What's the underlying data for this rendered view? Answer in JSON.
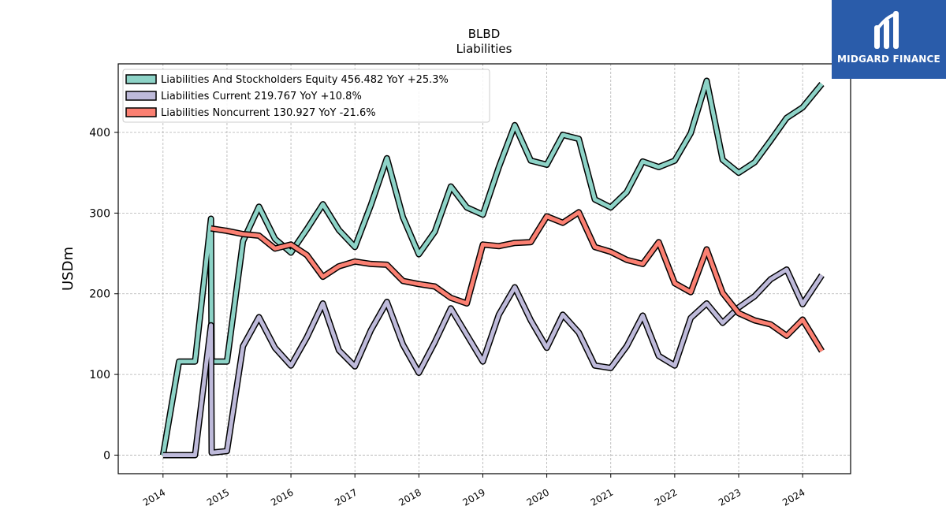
{
  "brand": {
    "name": "MIDGARD FINANCE",
    "background": "#2a5caa"
  },
  "chart_data": {
    "type": "line",
    "title": "BLBD",
    "subtitle": "Liabilities",
    "ylabel": "USDm",
    "xlabel": "",
    "ylim": [
      -23,
      485
    ],
    "xlim": [
      2013.3,
      2024.75
    ],
    "yticks": [
      0,
      100,
      200,
      300,
      400
    ],
    "xticks": [
      "2014",
      "2015",
      "2016",
      "2017",
      "2018",
      "2019",
      "2020",
      "2021",
      "2022",
      "2023",
      "2024"
    ],
    "grid": true,
    "legend_position": "top-left",
    "series": [
      {
        "name": "Liabilities And Stockholders Equity",
        "legend": "Liabilities And Stockholders Equity  456.482 YoY +25.3%",
        "color": "#8dd3c7",
        "points": [
          [
            2014.0,
            0
          ],
          [
            2014.25,
            116
          ],
          [
            2014.5,
            116
          ],
          [
            2014.75,
            293
          ],
          [
            2014.76,
            116
          ],
          [
            2015.0,
            116
          ],
          [
            2015.25,
            265
          ],
          [
            2015.5,
            308
          ],
          [
            2015.75,
            268
          ],
          [
            2016.0,
            251
          ],
          [
            2016.25,
            280
          ],
          [
            2016.5,
            311
          ],
          [
            2016.75,
            279
          ],
          [
            2017.0,
            258
          ],
          [
            2017.25,
            310
          ],
          [
            2017.5,
            368
          ],
          [
            2017.75,
            295
          ],
          [
            2018.0,
            249
          ],
          [
            2018.25,
            277
          ],
          [
            2018.5,
            333
          ],
          [
            2018.75,
            307
          ],
          [
            2019.0,
            298
          ],
          [
            2019.25,
            357
          ],
          [
            2019.5,
            409
          ],
          [
            2019.75,
            365
          ],
          [
            2020.0,
            360
          ],
          [
            2020.25,
            397
          ],
          [
            2020.5,
            392
          ],
          [
            2020.75,
            317
          ],
          [
            2021.0,
            307
          ],
          [
            2021.25,
            326
          ],
          [
            2021.5,
            364
          ],
          [
            2021.75,
            357
          ],
          [
            2022.0,
            365
          ],
          [
            2022.25,
            399
          ],
          [
            2022.5,
            464
          ],
          [
            2022.75,
            366
          ],
          [
            2023.0,
            350
          ],
          [
            2023.25,
            363
          ],
          [
            2023.5,
            390
          ],
          [
            2023.75,
            418
          ],
          [
            2024.0,
            431
          ],
          [
            2024.3,
            460
          ]
        ]
      },
      {
        "name": "Liabilities Current",
        "legend": "Liabilities Current  219.767 YoY +10.8%",
        "color": "#bebada",
        "points": [
          [
            2014.0,
            0
          ],
          [
            2014.25,
            0
          ],
          [
            2014.5,
            0
          ],
          [
            2014.75,
            161
          ],
          [
            2014.76,
            3
          ],
          [
            2015.0,
            5
          ],
          [
            2015.25,
            135
          ],
          [
            2015.5,
            171
          ],
          [
            2015.75,
            133
          ],
          [
            2016.0,
            111
          ],
          [
            2016.25,
            146
          ],
          [
            2016.5,
            188
          ],
          [
            2016.75,
            130
          ],
          [
            2017.0,
            110
          ],
          [
            2017.25,
            155
          ],
          [
            2017.5,
            190
          ],
          [
            2017.75,
            137
          ],
          [
            2018.0,
            102
          ],
          [
            2018.25,
            140
          ],
          [
            2018.5,
            182
          ],
          [
            2018.75,
            149
          ],
          [
            2019.0,
            116
          ],
          [
            2019.25,
            174
          ],
          [
            2019.5,
            208
          ],
          [
            2019.75,
            167
          ],
          [
            2020.0,
            133
          ],
          [
            2020.25,
            174
          ],
          [
            2020.5,
            152
          ],
          [
            2020.75,
            111
          ],
          [
            2021.0,
            108
          ],
          [
            2021.25,
            135
          ],
          [
            2021.5,
            173
          ],
          [
            2021.75,
            123
          ],
          [
            2022.0,
            111
          ],
          [
            2022.25,
            170
          ],
          [
            2022.5,
            188
          ],
          [
            2022.75,
            164
          ],
          [
            2023.0,
            183
          ],
          [
            2023.25,
            197
          ],
          [
            2023.5,
            218
          ],
          [
            2023.75,
            230
          ],
          [
            2024.0,
            187
          ],
          [
            2024.3,
            223
          ]
        ]
      },
      {
        "name": "Liabilities Noncurrent",
        "legend": "Liabilities Noncurrent  130.927 YoY -21.6%",
        "color": "#fb8072",
        "points": [
          [
            2014.75,
            281
          ],
          [
            2015.0,
            278
          ],
          [
            2015.25,
            274
          ],
          [
            2015.5,
            272
          ],
          [
            2015.75,
            256
          ],
          [
            2016.0,
            261
          ],
          [
            2016.25,
            248
          ],
          [
            2016.5,
            221
          ],
          [
            2016.75,
            234
          ],
          [
            2017.0,
            240
          ],
          [
            2017.25,
            237
          ],
          [
            2017.5,
            236
          ],
          [
            2017.75,
            216
          ],
          [
            2018.0,
            212
          ],
          [
            2018.25,
            209
          ],
          [
            2018.5,
            195
          ],
          [
            2018.75,
            188
          ],
          [
            2019.0,
            261
          ],
          [
            2019.25,
            259
          ],
          [
            2019.5,
            263
          ],
          [
            2019.75,
            264
          ],
          [
            2020.0,
            296
          ],
          [
            2020.25,
            288
          ],
          [
            2020.5,
            301
          ],
          [
            2020.75,
            258
          ],
          [
            2021.0,
            252
          ],
          [
            2021.25,
            242
          ],
          [
            2021.5,
            237
          ],
          [
            2021.75,
            264
          ],
          [
            2022.0,
            213
          ],
          [
            2022.25,
            202
          ],
          [
            2022.5,
            255
          ],
          [
            2022.75,
            201
          ],
          [
            2023.0,
            176
          ],
          [
            2023.25,
            167
          ],
          [
            2023.5,
            162
          ],
          [
            2023.75,
            148
          ],
          [
            2024.0,
            168
          ],
          [
            2024.3,
            129
          ]
        ]
      }
    ]
  }
}
